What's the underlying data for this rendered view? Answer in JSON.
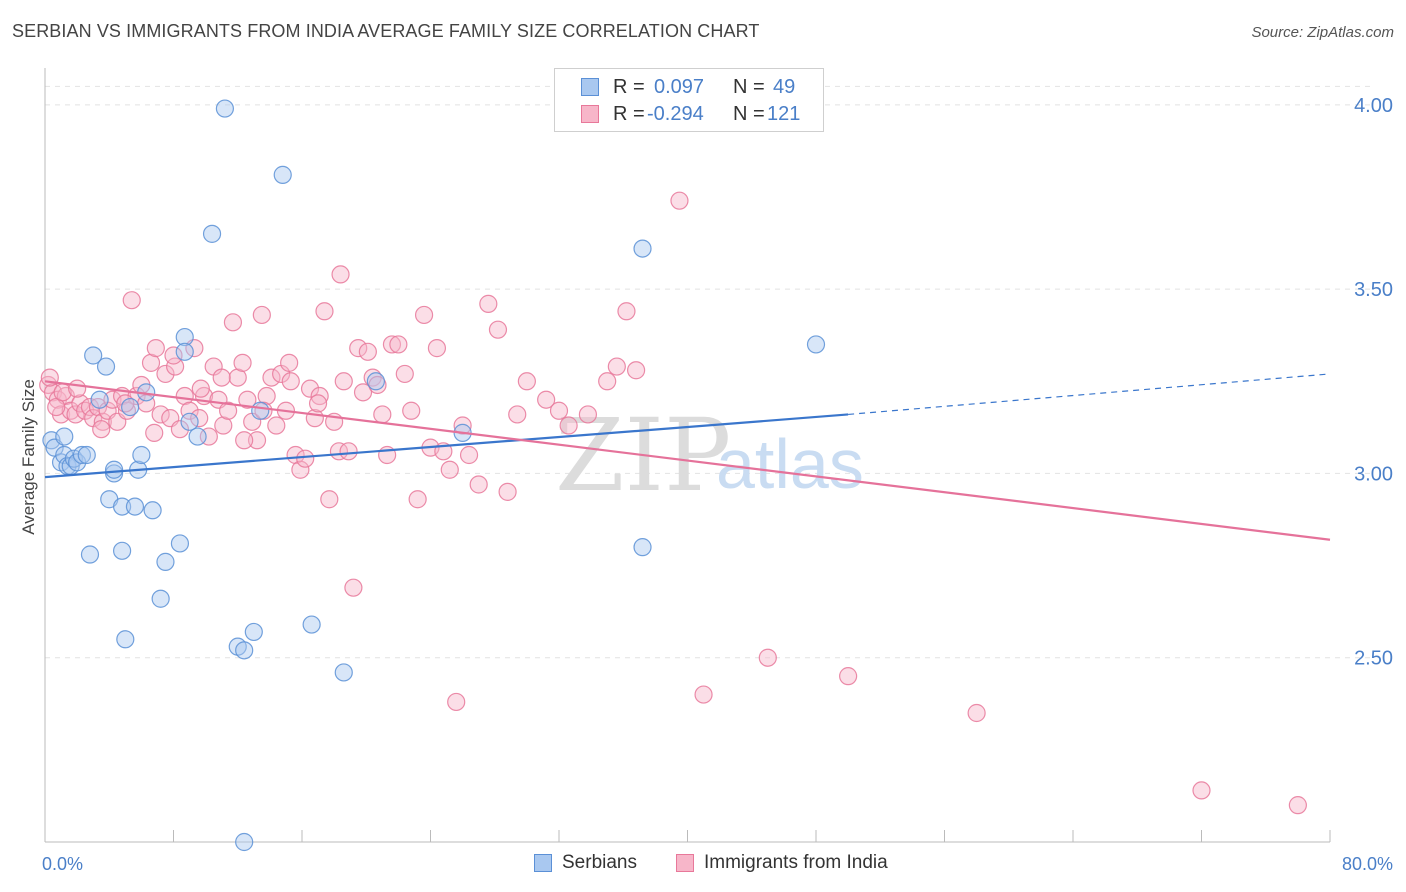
{
  "title": "SERBIAN VS IMMIGRANTS FROM INDIA AVERAGE FAMILY SIZE CORRELATION CHART",
  "source": "Source: ZipAtlas.com",
  "watermark": {
    "zip": "ZIP",
    "atlas": "atlas"
  },
  "legend_top": {
    "rows": [
      {
        "r_label": "R =",
        "r_value": "0.097",
        "n_label": "N =",
        "n_value": "49"
      },
      {
        "r_label": "R =",
        "r_value": "-0.294",
        "n_label": "N =",
        "n_value": "121"
      }
    ]
  },
  "legend_bottom": {
    "items": [
      "Serbians",
      "Immigrants from India"
    ]
  },
  "colors": {
    "serbians_fill": "#a9c8f0",
    "serbians_stroke": "#5b90d6",
    "serbians_line": "#3a76cc",
    "india_fill": "#f7b6c9",
    "india_stroke": "#e8789a",
    "india_line": "#e5729a",
    "tick_text": "#4a7fc8",
    "grid": "#e2e2e2"
  },
  "chart_data": {
    "type": "scatter",
    "title": "SERBIAN VS IMMIGRANTS FROM INDIA AVERAGE FAMILY SIZE CORRELATION CHART",
    "xlabel": "",
    "ylabel": "Average Family Size",
    "xlim": [
      0,
      80
    ],
    "ylim": [
      2.0,
      4.1
    ],
    "x_tick_labels": [
      "0.0%",
      "80.0%"
    ],
    "y_ticks": [
      2.5,
      3.0,
      3.5,
      4.0
    ],
    "y_tick_labels": [
      "2.50",
      "3.00",
      "3.50",
      "4.00"
    ],
    "grid": true,
    "legend_position": "top-center",
    "series": [
      {
        "name": "Serbians",
        "r": 0.097,
        "n": 49,
        "trend": {
          "x0": 0,
          "y0": 2.99,
          "x1": 50,
          "y1": 3.16,
          "dashed_to_x": 80,
          "dashed_to_y": 3.27
        },
        "points": [
          [
            0.4,
            3.09
          ],
          [
            0.6,
            3.07
          ],
          [
            1.0,
            3.03
          ],
          [
            1.2,
            3.05
          ],
          [
            1.4,
            3.02
          ],
          [
            1.6,
            3.02
          ],
          [
            1.8,
            3.04
          ],
          [
            2.0,
            3.03
          ],
          [
            2.3,
            3.05
          ],
          [
            2.6,
            3.05
          ],
          [
            2.8,
            2.78
          ],
          [
            3.0,
            3.32
          ],
          [
            3.8,
            3.29
          ],
          [
            4.0,
            2.93
          ],
          [
            4.3,
            3.0
          ],
          [
            4.3,
            3.01
          ],
          [
            4.8,
            2.91
          ],
          [
            4.8,
            2.79
          ],
          [
            5.0,
            2.55
          ],
          [
            5.3,
            3.18
          ],
          [
            5.6,
            2.91
          ],
          [
            5.8,
            3.01
          ],
          [
            6.0,
            3.05
          ],
          [
            6.3,
            3.22
          ],
          [
            6.7,
            2.9
          ],
          [
            7.2,
            2.66
          ],
          [
            7.5,
            2.76
          ],
          [
            8.4,
            2.81
          ],
          [
            8.7,
            3.37
          ],
          [
            8.7,
            3.33
          ],
          [
            9.0,
            3.14
          ],
          [
            9.5,
            3.1
          ],
          [
            10.4,
            3.65
          ],
          [
            11.2,
            3.99
          ],
          [
            12.0,
            2.53
          ],
          [
            12.4,
            2.52
          ],
          [
            12.4,
            2.0
          ],
          [
            13.0,
            2.57
          ],
          [
            13.4,
            3.17
          ],
          [
            14.8,
            3.81
          ],
          [
            16.6,
            2.59
          ],
          [
            18.6,
            2.46
          ],
          [
            20.6,
            3.25
          ],
          [
            26.0,
            3.11
          ],
          [
            37.2,
            3.61
          ],
          [
            37.2,
            2.8
          ],
          [
            48.0,
            3.35
          ],
          [
            1.2,
            3.1
          ],
          [
            3.4,
            3.2
          ]
        ]
      },
      {
        "name": "Immigrants from India",
        "r": -0.294,
        "n": 121,
        "trend": {
          "x0": 0,
          "y0": 3.25,
          "x1": 80,
          "y1": 2.82
        },
        "points": [
          [
            0.2,
            3.24
          ],
          [
            0.5,
            3.22
          ],
          [
            0.8,
            3.2
          ],
          [
            1.0,
            3.16
          ],
          [
            1.3,
            3.21
          ],
          [
            1.6,
            3.17
          ],
          [
            1.9,
            3.16
          ],
          [
            2.2,
            3.19
          ],
          [
            2.5,
            3.17
          ],
          [
            2.8,
            3.18
          ],
          [
            3.0,
            3.15
          ],
          [
            3.3,
            3.18
          ],
          [
            3.6,
            3.14
          ],
          [
            3.9,
            3.17
          ],
          [
            4.2,
            3.2
          ],
          [
            4.5,
            3.14
          ],
          [
            4.8,
            3.21
          ],
          [
            5.1,
            3.17
          ],
          [
            5.4,
            3.47
          ],
          [
            5.7,
            3.21
          ],
          [
            6.0,
            3.24
          ],
          [
            6.3,
            3.19
          ],
          [
            6.6,
            3.3
          ],
          [
            6.9,
            3.34
          ],
          [
            7.2,
            3.16
          ],
          [
            7.5,
            3.27
          ],
          [
            7.8,
            3.15
          ],
          [
            8.1,
            3.29
          ],
          [
            8.4,
            3.12
          ],
          [
            8.7,
            3.21
          ],
          [
            9.0,
            3.17
          ],
          [
            9.3,
            3.34
          ],
          [
            9.6,
            3.15
          ],
          [
            9.9,
            3.21
          ],
          [
            10.2,
            3.1
          ],
          [
            10.5,
            3.29
          ],
          [
            10.8,
            3.2
          ],
          [
            11.1,
            3.13
          ],
          [
            11.4,
            3.17
          ],
          [
            11.7,
            3.41
          ],
          [
            12.0,
            3.26
          ],
          [
            12.3,
            3.3
          ],
          [
            12.6,
            3.2
          ],
          [
            12.9,
            3.14
          ],
          [
            13.2,
            3.09
          ],
          [
            13.5,
            3.43
          ],
          [
            13.8,
            3.21
          ],
          [
            14.1,
            3.26
          ],
          [
            14.4,
            3.13
          ],
          [
            14.7,
            3.27
          ],
          [
            15.0,
            3.17
          ],
          [
            15.3,
            3.25
          ],
          [
            15.6,
            3.05
          ],
          [
            15.9,
            3.01
          ],
          [
            16.2,
            3.04
          ],
          [
            16.5,
            3.23
          ],
          [
            16.8,
            3.15
          ],
          [
            17.1,
            3.21
          ],
          [
            17.4,
            3.44
          ],
          [
            17.7,
            2.93
          ],
          [
            18.0,
            3.14
          ],
          [
            18.3,
            3.06
          ],
          [
            18.6,
            3.25
          ],
          [
            18.9,
            3.06
          ],
          [
            19.2,
            2.69
          ],
          [
            19.5,
            3.34
          ],
          [
            19.8,
            3.22
          ],
          [
            20.1,
            3.33
          ],
          [
            20.4,
            3.26
          ],
          [
            20.7,
            3.24
          ],
          [
            21.0,
            3.16
          ],
          [
            21.3,
            3.05
          ],
          [
            21.6,
            3.35
          ],
          [
            22.0,
            3.35
          ],
          [
            22.4,
            3.27
          ],
          [
            22.8,
            3.17
          ],
          [
            23.2,
            2.93
          ],
          [
            23.6,
            3.43
          ],
          [
            24.0,
            3.07
          ],
          [
            24.4,
            3.34
          ],
          [
            24.8,
            3.06
          ],
          [
            25.2,
            3.01
          ],
          [
            25.6,
            2.38
          ],
          [
            26.0,
            3.13
          ],
          [
            26.4,
            3.05
          ],
          [
            27.0,
            2.97
          ],
          [
            27.6,
            3.46
          ],
          [
            28.2,
            3.39
          ],
          [
            28.8,
            2.95
          ],
          [
            29.4,
            3.16
          ],
          [
            30.0,
            3.25
          ],
          [
            31.2,
            3.2
          ],
          [
            32.0,
            3.17
          ],
          [
            32.6,
            3.13
          ],
          [
            33.8,
            3.16
          ],
          [
            35.0,
            3.25
          ],
          [
            35.6,
            3.29
          ],
          [
            36.2,
            3.44
          ],
          [
            36.8,
            3.28
          ],
          [
            39.5,
            3.74
          ],
          [
            41.0,
            2.4
          ],
          [
            45.0,
            2.5
          ],
          [
            50.0,
            2.45
          ],
          [
            58.0,
            2.35
          ],
          [
            72.0,
            2.14
          ],
          [
            78.0,
            2.1
          ],
          [
            0.3,
            3.26
          ],
          [
            0.7,
            3.18
          ],
          [
            1.1,
            3.22
          ],
          [
            2.0,
            3.23
          ],
          [
            3.5,
            3.12
          ],
          [
            5.0,
            3.19
          ],
          [
            6.8,
            3.11
          ],
          [
            8.0,
            3.32
          ],
          [
            9.7,
            3.23
          ],
          [
            11.0,
            3.26
          ],
          [
            12.4,
            3.09
          ],
          [
            13.6,
            3.17
          ],
          [
            15.2,
            3.3
          ],
          [
            17.0,
            3.19
          ],
          [
            18.4,
            3.54
          ]
        ]
      }
    ]
  }
}
